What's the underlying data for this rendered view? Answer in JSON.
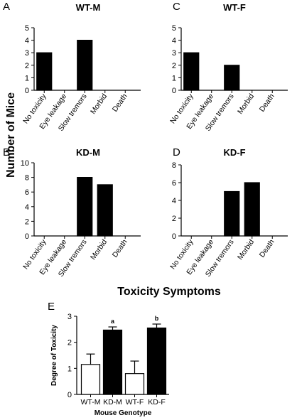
{
  "figure": {
    "shared_ylabel": "Number of Mice",
    "shared_xlabel": "Toxicity Symptoms"
  },
  "chart_data": [
    {
      "type": "bar",
      "panel": "A",
      "title": "WT-M",
      "categories": [
        "No toxicity",
        "Eye leakage",
        "Slow tremors",
        "Morbid",
        "Death"
      ],
      "values": [
        3,
        0,
        4,
        0,
        0
      ],
      "ylim": [
        0,
        5
      ],
      "yticks": [
        0,
        1,
        2,
        3,
        4,
        5
      ],
      "bar_color": "#000000"
    },
    {
      "type": "bar",
      "panel": "C",
      "title": "WT-F",
      "categories": [
        "No toxicity",
        "Eye leakage",
        "Slow tremors",
        "Morbid",
        "Death"
      ],
      "values": [
        3,
        0,
        2,
        0,
        0
      ],
      "ylim": [
        0,
        5
      ],
      "yticks": [
        0,
        1,
        2,
        3,
        4,
        5
      ],
      "bar_color": "#000000"
    },
    {
      "type": "bar",
      "panel": "B",
      "title": "KD-M",
      "categories": [
        "No toxicity",
        "Eye leakage",
        "Slow tremors",
        "Morbid",
        "Death"
      ],
      "values": [
        0,
        0,
        8,
        7,
        0
      ],
      "ylim": [
        0,
        10
      ],
      "yticks": [
        0,
        2,
        4,
        6,
        8,
        10
      ],
      "bar_color": "#000000"
    },
    {
      "type": "bar",
      "panel": "D",
      "title": "KD-F",
      "categories": [
        "No toxicity",
        "Eye leakage",
        "Slow tremors",
        "Morbid",
        "Death"
      ],
      "values": [
        0,
        0,
        5,
        6,
        0
      ],
      "ylim": [
        0,
        8
      ],
      "yticks": [
        0,
        2,
        4,
        6,
        8
      ],
      "bar_color": "#000000"
    },
    {
      "type": "bar",
      "panel": "E",
      "title": "",
      "categories": [
        "WT-M",
        "KD-M",
        "WT-F",
        "KD-F"
      ],
      "values": [
        1.15,
        2.47,
        0.8,
        2.55
      ],
      "errors": [
        0.4,
        0.12,
        0.48,
        0.15
      ],
      "fills": [
        "#ffffff",
        "#000000",
        "#ffffff",
        "#000000"
      ],
      "annotations": [
        "",
        "a",
        "",
        "b"
      ],
      "ylim": [
        0,
        3
      ],
      "yticks": [
        0,
        1,
        2,
        3
      ],
      "xlabel": "Mouse Genotype",
      "ylabel": "Degree of Toxicity"
    }
  ]
}
